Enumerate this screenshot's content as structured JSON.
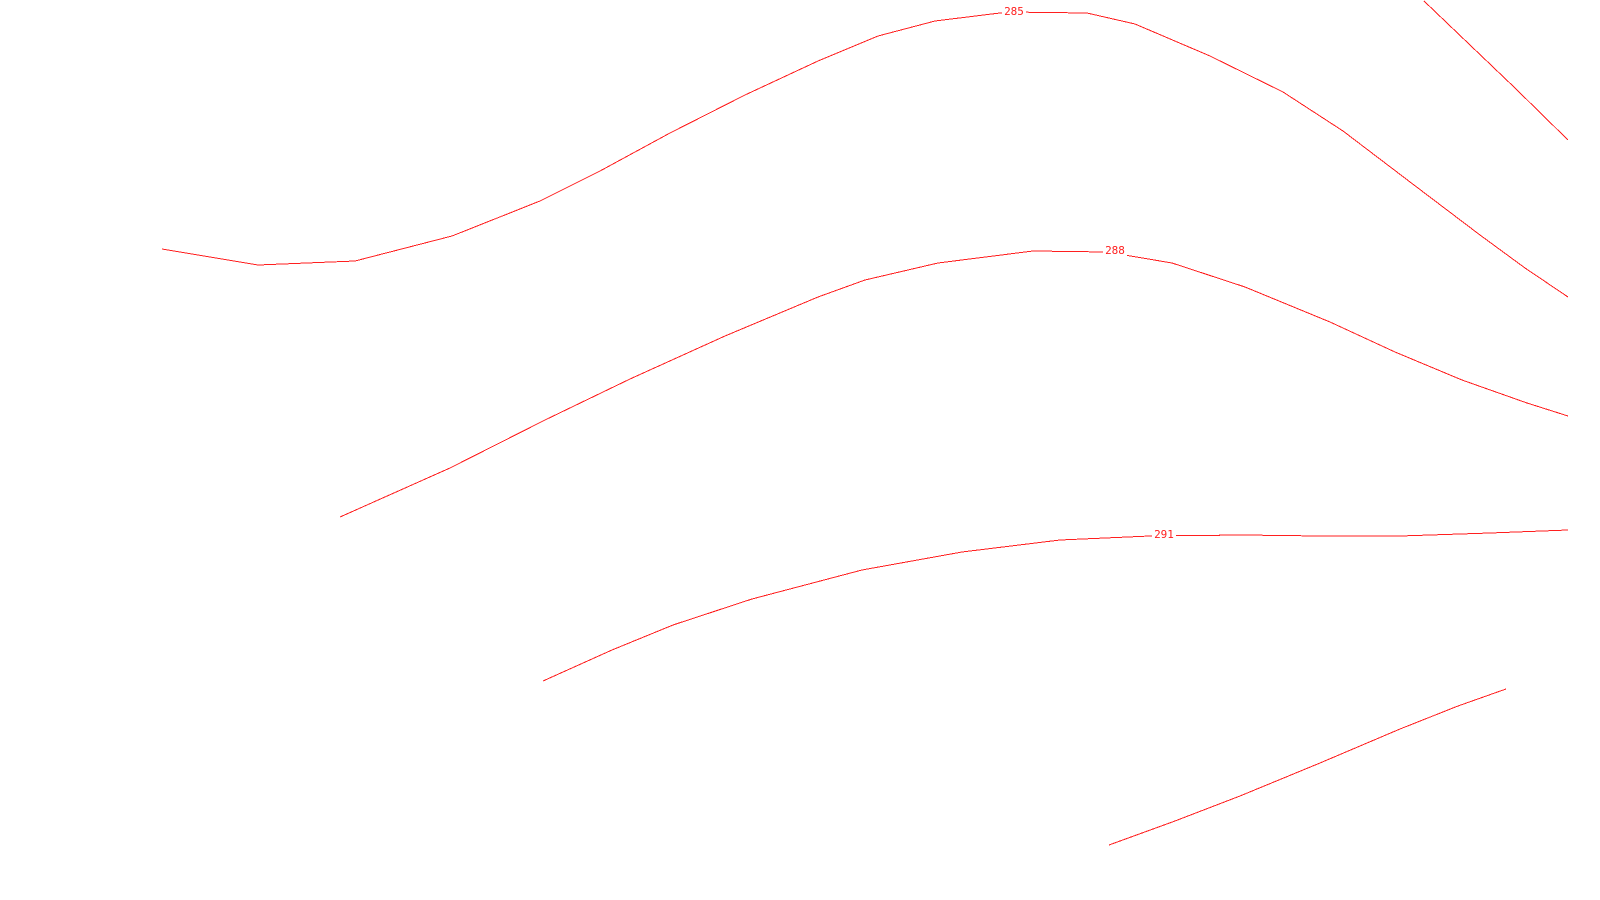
{
  "map": {
    "line_color": "#ff1f1f",
    "background": "#ffffff",
    "contours": [
      {
        "id": "285",
        "label": "285"
      },
      {
        "id": "288",
        "label": "288"
      },
      {
        "id": "291",
        "label": "291"
      },
      {
        "id": "unlabeled-top-right",
        "label": ""
      },
      {
        "id": "unlabeled-bottom",
        "label": ""
      }
    ]
  }
}
